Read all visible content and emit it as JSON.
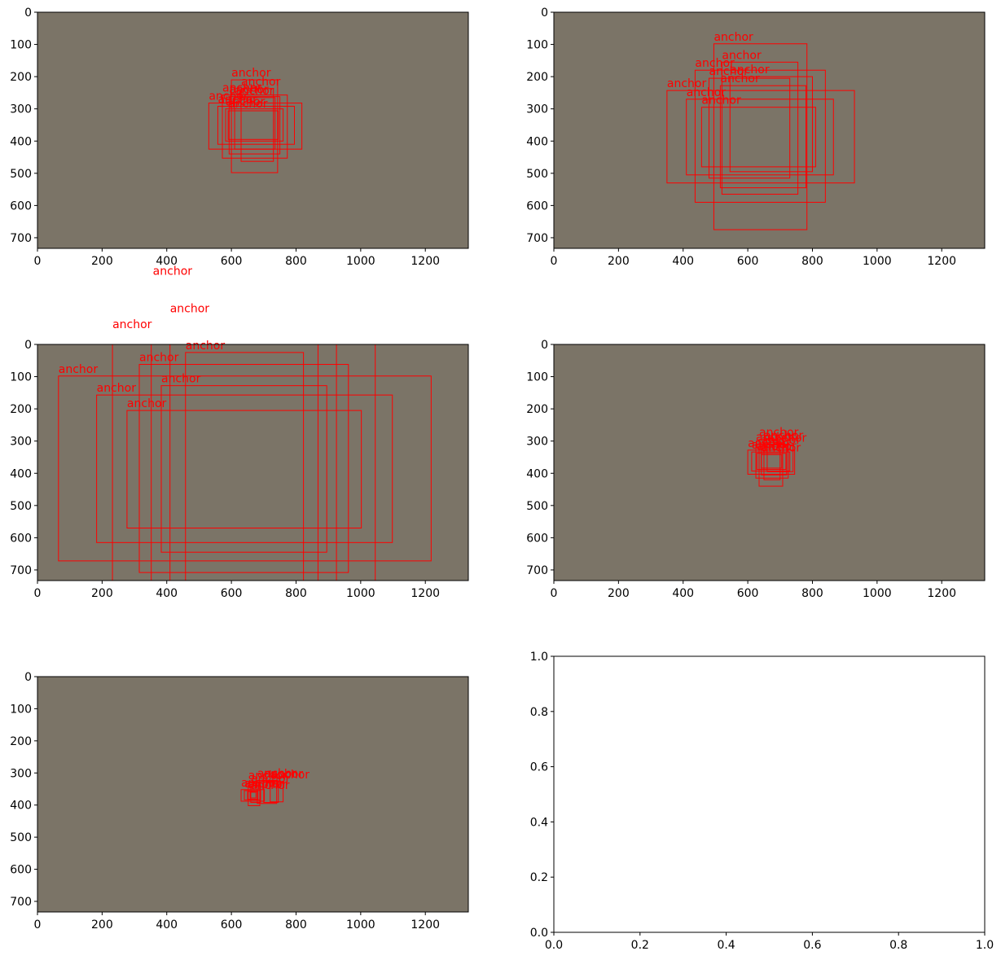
{
  "figure": {
    "background": "#ffffff",
    "image_fill": "#7b7467",
    "box_color": "#ff0000",
    "axis_color": "#000000"
  },
  "chart_data": [
    {
      "type": "image-annotation",
      "panel": "top-left",
      "xlim": [
        0,
        1333
      ],
      "ylim": [
        0,
        733
      ],
      "y_inverted": true,
      "xticks": [
        "0",
        "200",
        "400",
        "600",
        "800",
        "1000",
        "1200"
      ],
      "yticks": [
        "0",
        "100",
        "200",
        "300",
        "400",
        "500",
        "600",
        "700"
      ],
      "boxes": [
        {
          "x0": 600,
          "y0": 210,
          "x1": 743,
          "y1": 498,
          "label": "anchor"
        },
        {
          "x0": 630,
          "y0": 237,
          "x1": 730,
          "y1": 463,
          "label": "anchor"
        },
        {
          "x0": 572,
          "y0": 257,
          "x1": 773,
          "y1": 453,
          "label": "anchor"
        },
        {
          "x0": 593,
          "y0": 262,
          "x1": 750,
          "y1": 440,
          "label": "anchor"
        },
        {
          "x0": 610,
          "y0": 265,
          "x1": 735,
          "y1": 425,
          "label": "anchor"
        },
        {
          "x0": 530,
          "y0": 282,
          "x1": 818,
          "y1": 425,
          "label": "anchor"
        },
        {
          "x0": 558,
          "y0": 292,
          "x1": 795,
          "y1": 410,
          "label": "anchor"
        },
        {
          "x0": 582,
          "y0": 300,
          "x1": 760,
          "y1": 400,
          "label": "anchor"
        },
        {
          "x0": 590,
          "y0": 306,
          "x1": 745,
          "y1": 395,
          "label": "anchor"
        }
      ],
      "stray_label": {
        "x": 357,
        "y": 815,
        "text": "anchor"
      }
    },
    {
      "type": "image-annotation",
      "panel": "top-right",
      "xlim": [
        0,
        1333
      ],
      "ylim": [
        0,
        733
      ],
      "y_inverted": true,
      "xticks": [
        "0",
        "200",
        "400",
        "600",
        "800",
        "1000",
        "1200"
      ],
      "yticks": [
        "0",
        "100",
        "200",
        "300",
        "400",
        "500",
        "600",
        "700"
      ],
      "boxes": [
        {
          "x0": 495,
          "y0": 98,
          "x1": 783,
          "y1": 675,
          "label": "anchor"
        },
        {
          "x0": 520,
          "y0": 155,
          "x1": 755,
          "y1": 565,
          "label": "anchor"
        },
        {
          "x0": 437,
          "y0": 180,
          "x1": 840,
          "y1": 590,
          "label": "anchor"
        },
        {
          "x0": 545,
          "y0": 200,
          "x1": 800,
          "y1": 495,
          "label": "anchor"
        },
        {
          "x0": 480,
          "y0": 205,
          "x1": 730,
          "y1": 515,
          "label": "anchor"
        },
        {
          "x0": 515,
          "y0": 228,
          "x1": 780,
          "y1": 545,
          "label": "anchor"
        },
        {
          "x0": 350,
          "y0": 243,
          "x1": 930,
          "y1": 530,
          "label": "anchor"
        },
        {
          "x0": 410,
          "y0": 270,
          "x1": 865,
          "y1": 505,
          "label": "anchor"
        },
        {
          "x0": 457,
          "y0": 295,
          "x1": 810,
          "y1": 480,
          "label": "anchor"
        }
      ]
    },
    {
      "type": "image-annotation",
      "panel": "middle-left",
      "xlim": [
        0,
        1333
      ],
      "ylim": [
        0,
        733
      ],
      "y_inverted": true,
      "xticks": [
        "0",
        "200",
        "400",
        "600",
        "800",
        "1000",
        "1200"
      ],
      "yticks": [
        "0",
        "100",
        "200",
        "300",
        "400",
        "500",
        "600",
        "700"
      ],
      "boxes": [
        {
          "x0": 410,
          "y0": -90,
          "x1": 1045,
          "y1": 1250,
          "label": "anchor"
        },
        {
          "x0": 232,
          "y0": -40,
          "x1": 925,
          "y1": 1250,
          "label": "anchor"
        },
        {
          "x0": 458,
          "y0": 25,
          "x1": 823,
          "y1": 760,
          "label": "anchor"
        },
        {
          "x0": 315,
          "y0": 62,
          "x1": 962,
          "y1": 708,
          "label": "anchor"
        },
        {
          "x0": 65,
          "y0": 98,
          "x1": 1218,
          "y1": 672,
          "label": "anchor"
        },
        {
          "x0": 383,
          "y0": 128,
          "x1": 895,
          "y1": 645,
          "label": "anchor"
        },
        {
          "x0": 183,
          "y0": 157,
          "x1": 1098,
          "y1": 615,
          "label": "anchor"
        },
        {
          "x0": 277,
          "y0": 205,
          "x1": 1002,
          "y1": 570,
          "label": "anchor"
        },
        {
          "x0": 352,
          "y0": -20,
          "x1": 868,
          "y1": 1250,
          "label": ""
        }
      ]
    },
    {
      "type": "image-annotation",
      "panel": "middle-right",
      "xlim": [
        0,
        1333
      ],
      "ylim": [
        0,
        733
      ],
      "y_inverted": true,
      "xticks": [
        "0",
        "200",
        "400",
        "600",
        "800",
        "1000",
        "1200"
      ],
      "yticks": [
        "0",
        "100",
        "200",
        "300",
        "400",
        "500",
        "600",
        "700"
      ],
      "boxes": [
        {
          "x0": 635,
          "y0": 295,
          "x1": 708,
          "y1": 440,
          "label": "anchor"
        },
        {
          "x0": 650,
          "y0": 305,
          "x1": 700,
          "y1": 420,
          "label": "anchor"
        },
        {
          "x0": 625,
          "y0": 310,
          "x1": 725,
          "y1": 415,
          "label": "anchor"
        },
        {
          "x0": 660,
          "y0": 312,
          "x1": 740,
          "y1": 395,
          "label": "anchor"
        },
        {
          "x0": 642,
          "y0": 318,
          "x1": 720,
          "y1": 405,
          "label": "anchor"
        },
        {
          "x0": 600,
          "y0": 328,
          "x1": 745,
          "y1": 403,
          "label": "anchor"
        },
        {
          "x0": 612,
          "y0": 334,
          "x1": 730,
          "y1": 393,
          "label": "anchor"
        },
        {
          "x0": 628,
          "y0": 338,
          "x1": 718,
          "y1": 388,
          "label": "anchor"
        },
        {
          "x0": 642,
          "y0": 342,
          "x1": 705,
          "y1": 384,
          "label": "anchor"
        }
      ]
    },
    {
      "type": "image-annotation",
      "panel": "bottom-left",
      "xlim": [
        0,
        1333
      ],
      "ylim": [
        0,
        733
      ],
      "y_inverted": true,
      "xticks": [
        "0",
        "200",
        "400",
        "600",
        "800",
        "1000",
        "1200"
      ],
      "yticks": [
        "0",
        "100",
        "200",
        "300",
        "400",
        "500",
        "600",
        "700"
      ],
      "boxes": [
        {
          "x0": 652,
          "y0": 330,
          "x1": 688,
          "y1": 402,
          "label": "anchor"
        },
        {
          "x0": 680,
          "y0": 323,
          "x1": 740,
          "y1": 395,
          "label": "anchor"
        },
        {
          "x0": 700,
          "y0": 325,
          "x1": 745,
          "y1": 392,
          "label": "anchor"
        },
        {
          "x0": 720,
          "y0": 327,
          "x1": 760,
          "y1": 390,
          "label": "anchor"
        },
        {
          "x0": 660,
          "y0": 340,
          "x1": 690,
          "y1": 392,
          "label": "anchor"
        },
        {
          "x0": 630,
          "y0": 352,
          "x1": 702,
          "y1": 388,
          "label": "anchor"
        },
        {
          "x0": 640,
          "y0": 355,
          "x1": 690,
          "y1": 384,
          "label": "anchor"
        },
        {
          "x0": 650,
          "y0": 358,
          "x1": 682,
          "y1": 382,
          "label": "anchor"
        },
        {
          "x0": 658,
          "y0": 360,
          "x1": 676,
          "y1": 378,
          "label": "anchor"
        }
      ]
    },
    {
      "type": "empty",
      "panel": "bottom-right",
      "xlim": [
        0.0,
        1.0
      ],
      "ylim": [
        0.0,
        1.0
      ],
      "xticks": [
        "0.0",
        "0.2",
        "0.4",
        "0.6",
        "0.8",
        "1.0"
      ],
      "yticks": [
        "0.0",
        "0.2",
        "0.4",
        "0.6",
        "0.8",
        "1.0"
      ]
    }
  ]
}
